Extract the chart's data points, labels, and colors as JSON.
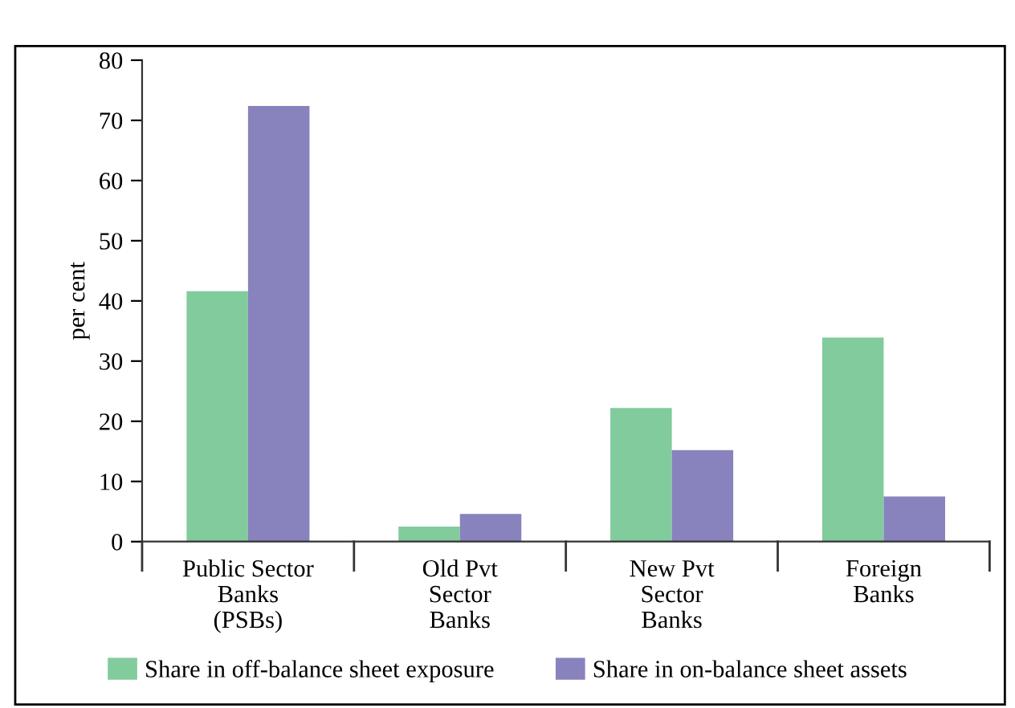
{
  "chart_data": {
    "type": "bar",
    "ylabel": "per cent",
    "categories": [
      "Public Sector\nBanks\n(PSBs)",
      "Old Pvt\nSector\nBanks",
      "New Pvt\nSector\nBanks",
      "Foreign\nBanks"
    ],
    "series": [
      {
        "name": "Share in off-balance sheet exposure",
        "color": "#82cb9c",
        "values": [
          41.6,
          2.5,
          22.2,
          33.9
        ]
      },
      {
        "name": "Share in on-balance sheet assets",
        "color": "#8882bd",
        "values": [
          72.4,
          4.6,
          15.2,
          7.5
        ]
      }
    ],
    "ylim": [
      0,
      80
    ],
    "yticks": [
      0,
      10,
      20,
      30,
      40,
      50,
      60,
      70,
      80
    ],
    "grid": false,
    "legend": "bottom"
  }
}
